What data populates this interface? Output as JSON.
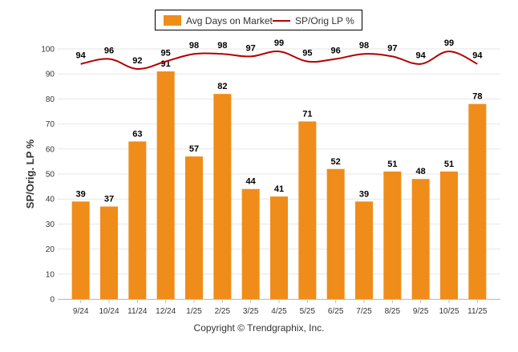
{
  "chart_data": {
    "type": "bar",
    "categories": [
      "9/24",
      "10/24",
      "11/24",
      "12/24",
      "1/25",
      "2/25",
      "3/25",
      "4/25",
      "5/25",
      "6/25",
      "7/25",
      "8/25",
      "9/25",
      "10/25",
      "11/25"
    ],
    "series": [
      {
        "name": "Avg Days on Market",
        "type": "bar",
        "color": "#f08c1a",
        "values": [
          39,
          37,
          63,
          91,
          57,
          82,
          44,
          41,
          71,
          52,
          39,
          51,
          48,
          51,
          78
        ]
      },
      {
        "name": "SP/Orig LP %",
        "type": "line",
        "color": "#b30000",
        "values": [
          94,
          96,
          92,
          95,
          98,
          98,
          97,
          99,
          95,
          96,
          98,
          97,
          94,
          99,
          94
        ]
      }
    ],
    "ylabel": "SP/Orig. LP %",
    "ylim": [
      0,
      100
    ],
    "yticks": [
      0,
      10,
      20,
      30,
      40,
      50,
      60,
      70,
      80,
      90,
      100
    ],
    "grid": true,
    "legend": "top-center"
  },
  "legend": {
    "bar_label": "Avg Days on Market",
    "line_label": "SP/Orig LP %"
  },
  "footer": {
    "copyright": "Copyright © Trendgraphix, Inc."
  }
}
